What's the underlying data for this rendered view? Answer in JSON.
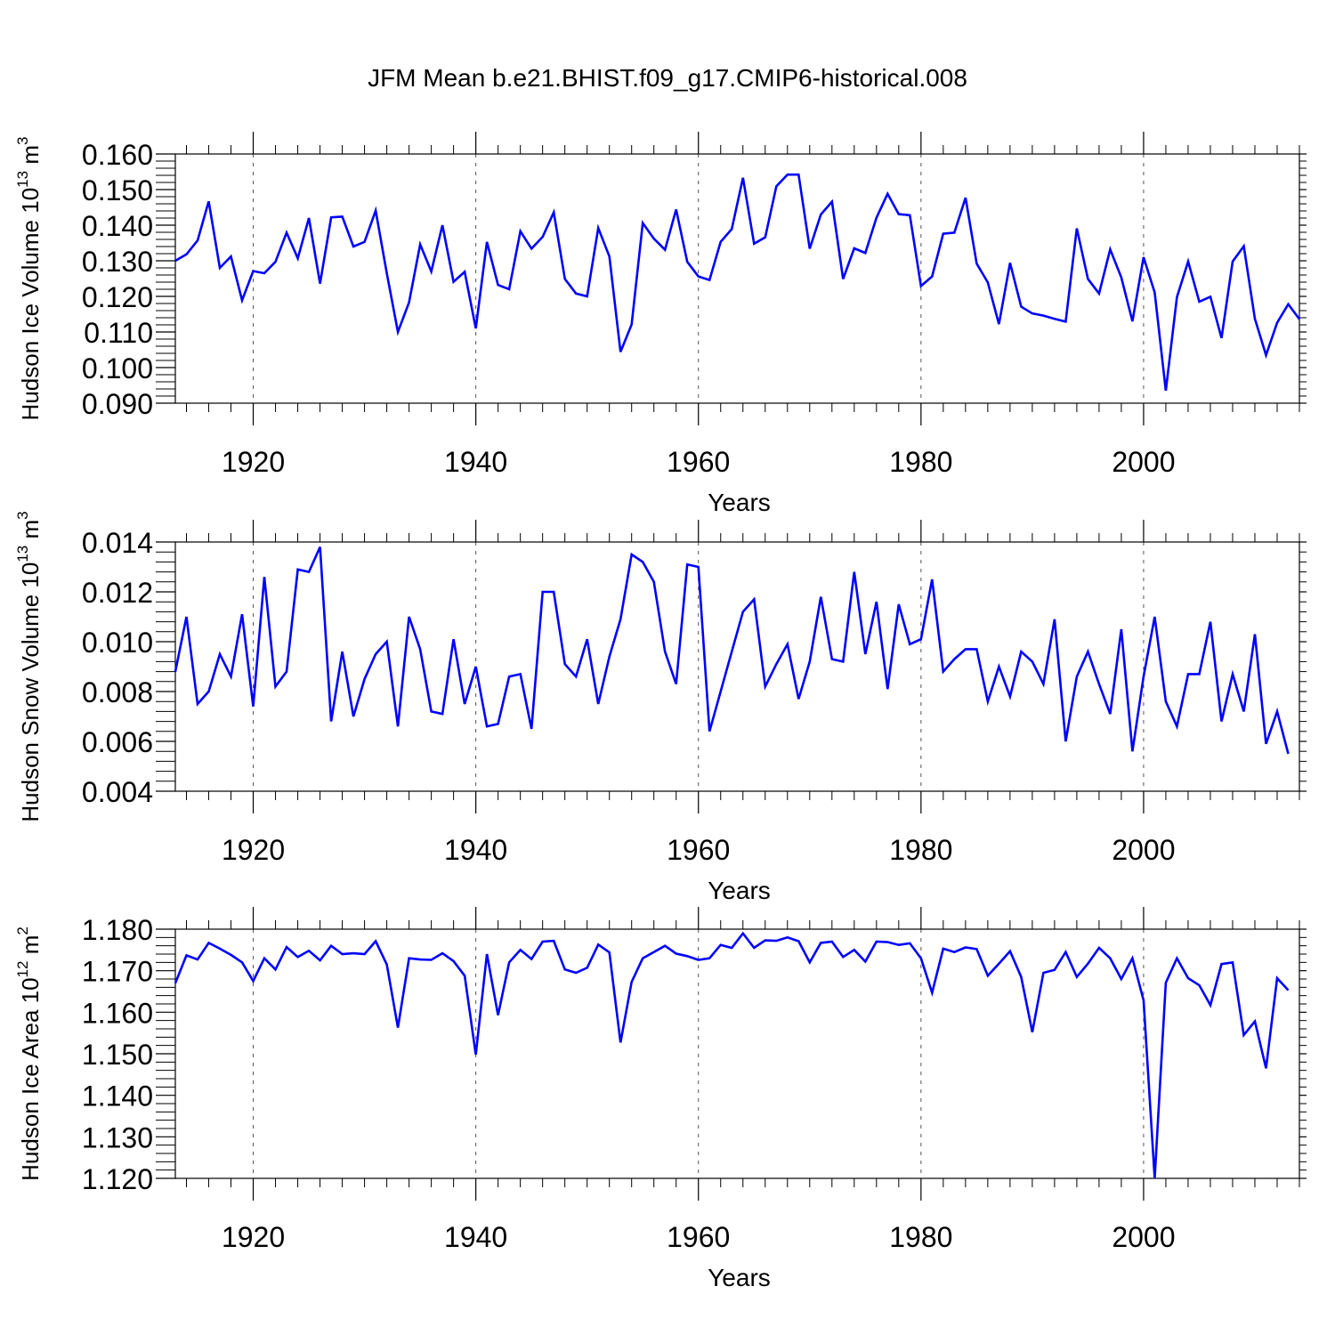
{
  "title": "JFM Mean b.e21.BHIST.f09_g17.CMIP6-historical.008",
  "colors": {
    "series": "#0000ff",
    "axis": "#000000",
    "grid": "#555555"
  },
  "chart_data": [
    {
      "type": "line",
      "title": "",
      "xlabel": "Years",
      "ylabel": "Hudson Ice Volume 10",
      "ylabel_exp": "13",
      "ylabel_unit": " m",
      "ylabel_unit_exp": "3",
      "xlim": [
        1913,
        2014
      ],
      "ylim": [
        0.09,
        0.16
      ],
      "x_ticks": [
        1920,
        1940,
        1960,
        1980,
        2000
      ],
      "x_tick_labels": [
        "1920",
        "1940",
        "1960",
        "1980",
        "2000"
      ],
      "y_ticks": [
        0.09,
        0.1,
        0.11,
        0.12,
        0.13,
        0.14,
        0.15,
        0.16
      ],
      "y_tick_labels": [
        "0.090",
        "0.100",
        "0.110",
        "0.120",
        "0.130",
        "0.140",
        "0.150",
        "0.160"
      ],
      "grid": "dashed vertical at major x ticks",
      "x_start": 1913,
      "values": [
        0.13,
        0.1318,
        0.1357,
        0.1467,
        0.128,
        0.1312,
        0.1189,
        0.1271,
        0.1265,
        0.1297,
        0.1379,
        0.1307,
        0.142,
        0.1236,
        0.1422,
        0.1424,
        0.134,
        0.1353,
        0.1441,
        0.1265,
        0.11,
        0.1183,
        0.1346,
        0.127,
        0.14,
        0.1241,
        0.1269,
        0.111,
        0.1353,
        0.1232,
        0.122,
        0.1383,
        0.1334,
        0.1367,
        0.1436,
        0.1249,
        0.1208,
        0.12,
        0.1392,
        0.1312,
        0.1044,
        0.1121,
        0.1406,
        0.1362,
        0.1331,
        0.1444,
        0.1297,
        0.1256,
        0.1246,
        0.1353,
        0.1389,
        0.1533,
        0.1348,
        0.1366,
        0.1509,
        0.1542,
        0.1542,
        0.1334,
        0.143,
        0.1466,
        0.1249,
        0.1335,
        0.1322,
        0.1421,
        0.1488,
        0.1431,
        0.1428,
        0.1229,
        0.1256,
        0.1376,
        0.1379,
        0.1477,
        0.1292,
        0.1239,
        0.1122,
        0.1294,
        0.1171,
        0.1152,
        0.1146,
        0.1137,
        0.1129,
        0.1391,
        0.1249,
        0.1208,
        0.1332,
        0.1253,
        0.113,
        0.131,
        0.1211,
        0.0935,
        0.1198,
        0.1298,
        0.1185,
        0.1199,
        0.1083,
        0.1298,
        0.1341,
        0.1137,
        0.1035,
        0.1126,
        0.1178,
        0.1136
      ]
    },
    {
      "type": "line",
      "title": "",
      "xlabel": "Years",
      "ylabel": "Hudson Snow Volume 10",
      "ylabel_exp": "13",
      "ylabel_unit": " m",
      "ylabel_unit_exp": "3",
      "xlim": [
        1913,
        2014
      ],
      "ylim": [
        0.004,
        0.014
      ],
      "x_ticks": [
        1920,
        1940,
        1960,
        1980,
        2000
      ],
      "x_tick_labels": [
        "1920",
        "1940",
        "1960",
        "1980",
        "2000"
      ],
      "y_ticks": [
        0.004,
        0.006,
        0.008,
        0.01,
        0.012,
        0.014
      ],
      "y_tick_labels": [
        "0.004",
        "0.006",
        "0.008",
        "0.010",
        "0.012",
        "0.014"
      ],
      "grid": "dashed vertical at major x ticks",
      "x_start": 1913,
      "values": [
        0.0088,
        0.011,
        0.0075,
        0.008,
        0.0095,
        0.0086,
        0.0111,
        0.0074,
        0.0126,
        0.0082,
        0.0088,
        0.0129,
        0.0128,
        0.0138,
        0.0068,
        0.0096,
        0.007,
        0.0085,
        0.0095,
        0.01,
        0.0066,
        0.011,
        0.0097,
        0.0072,
        0.0071,
        0.0101,
        0.0075,
        0.009,
        0.0066,
        0.0067,
        0.0086,
        0.0087,
        0.0065,
        0.012,
        0.012,
        0.0091,
        0.0086,
        0.0101,
        0.0075,
        0.0094,
        0.0109,
        0.0135,
        0.0132,
        0.0124,
        0.0096,
        0.0083,
        0.0131,
        0.013,
        0.0064,
        0.008,
        0.0096,
        0.0112,
        0.0117,
        0.0082,
        0.0091,
        0.0099,
        0.0077,
        0.0092,
        0.0118,
        0.0093,
        0.0092,
        0.0128,
        0.0095,
        0.0116,
        0.0081,
        0.0115,
        0.0099,
        0.0101,
        0.0125,
        0.0088,
        0.0093,
        0.0097,
        0.0097,
        0.0076,
        0.009,
        0.0078,
        0.0096,
        0.0092,
        0.0083,
        0.0109,
        0.006,
        0.0086,
        0.0096,
        0.0083,
        0.0071,
        0.0105,
        0.0056,
        0.0086,
        0.011,
        0.0076,
        0.0066,
        0.0087,
        0.0087,
        0.0108,
        0.0068,
        0.0087,
        0.0072,
        0.0103,
        0.0059,
        0.0072,
        0.0055
      ]
    },
    {
      "type": "line",
      "title": "",
      "xlabel": "Years",
      "ylabel": "Hudson Ice Area 10",
      "ylabel_exp": "12",
      "ylabel_unit": " m",
      "ylabel_unit_exp": "2",
      "xlim": [
        1913,
        2014
      ],
      "ylim": [
        1.12,
        1.18
      ],
      "x_ticks": [
        1920,
        1940,
        1960,
        1980,
        2000
      ],
      "x_tick_labels": [
        "1920",
        "1940",
        "1960",
        "1980",
        "2000"
      ],
      "y_ticks": [
        1.12,
        1.13,
        1.14,
        1.15,
        1.16,
        1.17,
        1.18
      ],
      "y_tick_labels": [
        "1.120",
        "1.130",
        "1.140",
        "1.150",
        "1.160",
        "1.170",
        "1.180"
      ],
      "grid": "dashed vertical at major x ticks",
      "x_start": 1913,
      "values": [
        1.167,
        1.1737,
        1.1727,
        1.1767,
        1.1753,
        1.1738,
        1.172,
        1.1675,
        1.173,
        1.1703,
        1.1757,
        1.1733,
        1.1748,
        1.1725,
        1.176,
        1.174,
        1.1742,
        1.174,
        1.1771,
        1.1715,
        1.1563,
        1.173,
        1.1727,
        1.1726,
        1.1742,
        1.1723,
        1.1688,
        1.1498,
        1.174,
        1.1593,
        1.172,
        1.175,
        1.1728,
        1.177,
        1.1772,
        1.1703,
        1.1695,
        1.1707,
        1.1763,
        1.1744,
        1.1527,
        1.1673,
        1.173,
        1.1745,
        1.176,
        1.1741,
        1.1735,
        1.1726,
        1.173,
        1.1762,
        1.1755,
        1.179,
        1.1755,
        1.1773,
        1.1772,
        1.178,
        1.1771,
        1.172,
        1.1767,
        1.177,
        1.1733,
        1.175,
        1.1722,
        1.177,
        1.1769,
        1.1762,
        1.1766,
        1.173,
        1.1647,
        1.1753,
        1.1745,
        1.1756,
        1.1752,
        1.1688,
        1.1717,
        1.1747,
        1.1685,
        1.1552,
        1.1695,
        1.1702,
        1.1745,
        1.1685,
        1.1717,
        1.1755,
        1.173,
        1.168,
        1.173,
        1.1629,
        1.12,
        1.1671,
        1.173,
        1.1682,
        1.1665,
        1.1617,
        1.1716,
        1.172,
        1.1545,
        1.1578,
        1.1465,
        1.1682,
        1.1653
      ]
    }
  ]
}
